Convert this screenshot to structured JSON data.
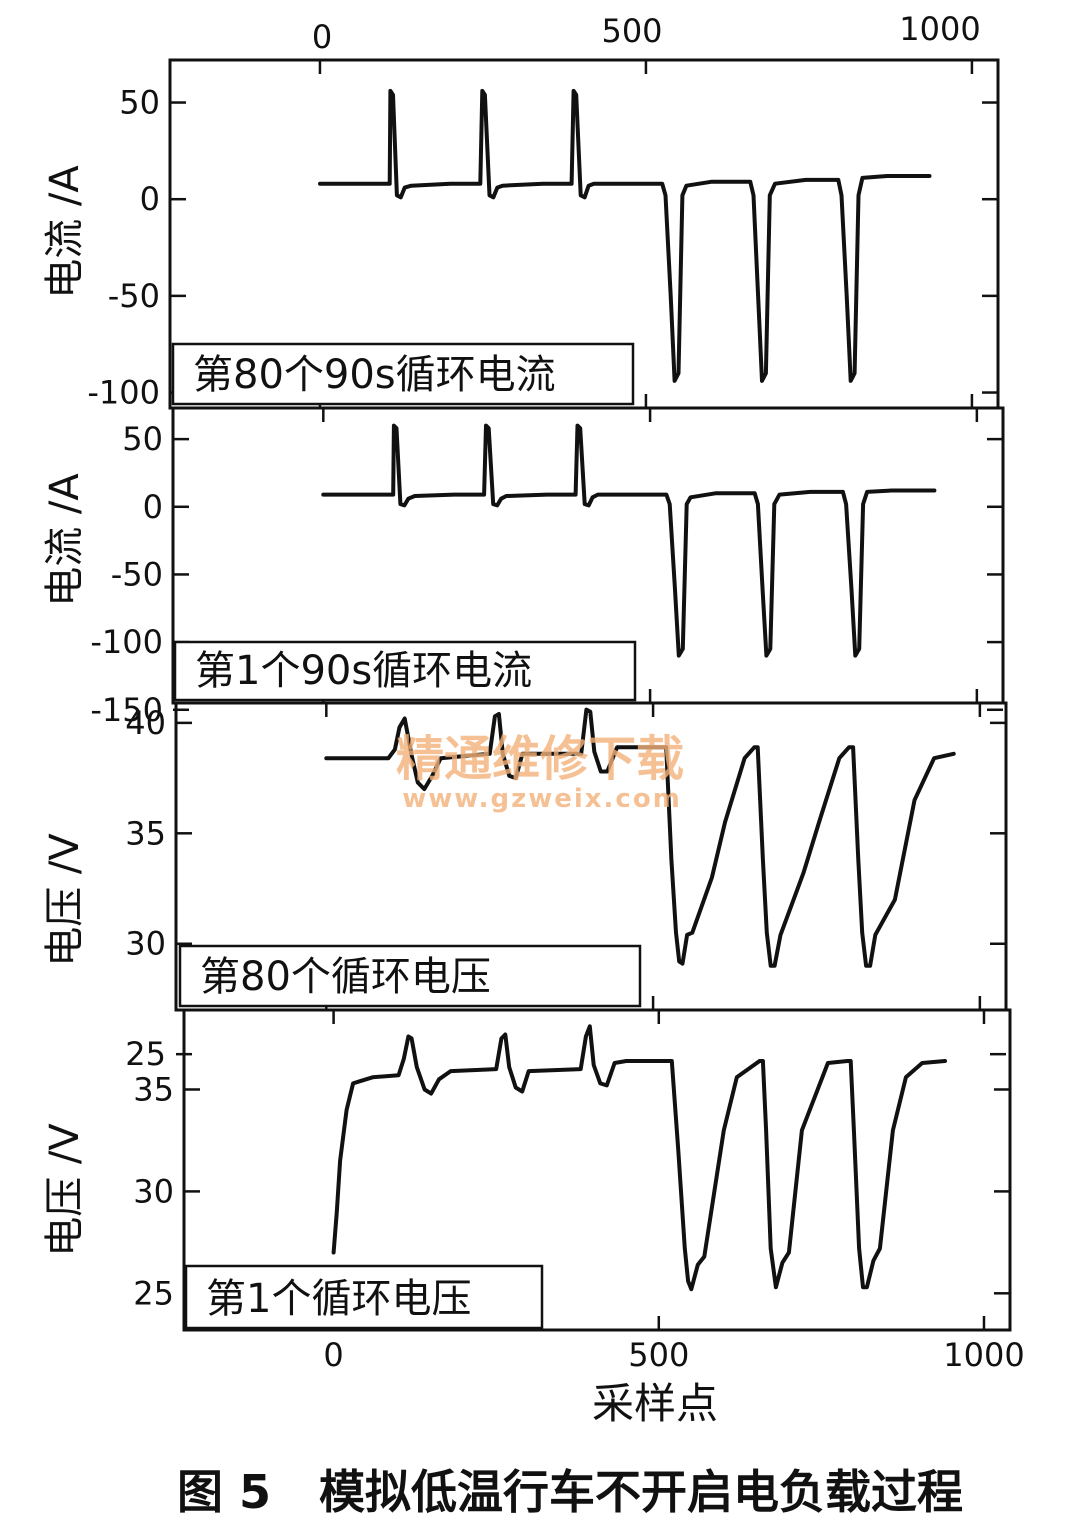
{
  "figure": {
    "caption": "图 5   模拟低温行车不开启电负载过程",
    "top_axis_ticks": [
      "0",
      "500",
      "1000"
    ],
    "xlabel": "采样点",
    "watermark": {
      "line1": "精通维修下载",
      "line2": "www.gzweix.com"
    }
  },
  "chart_data": [
    {
      "type": "line",
      "panel_label": "第80个90s循环电流",
      "ylabel": "电流 /A",
      "xlim": [
        -230,
        1040
      ],
      "ylim": [
        -108,
        72
      ],
      "yticks": [
        50,
        0,
        -50,
        -100
      ],
      "x_ticks": [
        0,
        500,
        1000
      ],
      "series": [
        {
          "x": [
            0,
            107,
            108,
            112,
            118,
            124,
            130,
            140,
            200,
            246,
            249,
            253,
            260,
            266,
            272,
            280,
            342,
            386,
            389,
            393,
            400,
            406,
            412,
            420,
            470,
            525,
            530,
            538,
            544,
            550,
            556,
            562,
            600,
            660,
            665,
            672,
            678,
            684,
            690,
            698,
            745,
            795,
            800,
            808,
            814,
            820,
            826,
            832,
            870,
            935
          ],
          "y": [
            8,
            8,
            56,
            54,
            2,
            1,
            6,
            7,
            8,
            8,
            56,
            54,
            2,
            1,
            6,
            7,
            8,
            8,
            56,
            54,
            2,
            1,
            7,
            8,
            8,
            8,
            2,
            -50,
            -94,
            -90,
            2,
            7,
            9,
            9,
            2,
            -50,
            -94,
            -90,
            2,
            8,
            10,
            10,
            2,
            -50,
            -94,
            -90,
            2,
            11,
            12,
            12
          ]
        }
      ]
    },
    {
      "type": "line",
      "panel_label": "第1个90s循环电流",
      "ylabel": "电流 /A",
      "xlim": [
        -230,
        1040
      ],
      "ylim": [
        -145,
        73
      ],
      "yticks": [
        50,
        0,
        -50,
        -100,
        -150
      ],
      "x_ticks": [
        0,
        500,
        1000
      ],
      "series": [
        {
          "x": [
            0,
            107,
            108,
            112,
            118,
            124,
            130,
            140,
            200,
            246,
            249,
            253,
            260,
            266,
            272,
            280,
            342,
            386,
            389,
            393,
            400,
            406,
            412,
            420,
            470,
            525,
            530,
            538,
            544,
            550,
            556,
            562,
            600,
            660,
            665,
            672,
            678,
            684,
            690,
            698,
            745,
            795,
            800,
            808,
            814,
            820,
            826,
            832,
            870,
            935
          ],
          "y": [
            9,
            9,
            60,
            58,
            2,
            1,
            6,
            8,
            9,
            9,
            60,
            58,
            2,
            1,
            6,
            8,
            9,
            9,
            60,
            58,
            2,
            1,
            7,
            9,
            9,
            9,
            2,
            -60,
            -110,
            -105,
            2,
            7,
            10,
            10,
            2,
            -60,
            -110,
            -105,
            2,
            9,
            11,
            11,
            2,
            -60,
            -110,
            -105,
            2,
            11,
            12,
            12
          ]
        }
      ]
    },
    {
      "type": "line",
      "panel_label": "第80个循环电压",
      "ylabel": "电压 /V",
      "xlim": [
        -230,
        1040
      ],
      "ylim": [
        27,
        40.9
      ],
      "yticks": [
        40,
        35,
        30,
        25
      ],
      "x_ticks": [
        0,
        500,
        1000
      ],
      "series": [
        {
          "x": [
            0,
            95,
            105,
            112,
            120,
            130,
            140,
            150,
            162,
            175,
            250,
            258,
            264,
            270,
            280,
            290,
            300,
            390,
            398,
            404,
            410,
            420,
            430,
            445,
            500,
            520,
            528,
            535,
            540,
            545,
            552,
            560,
            590,
            610,
            640,
            655,
            660,
            668,
            674,
            680,
            686,
            695,
            730,
            755,
            785,
            800,
            806,
            814,
            820,
            826,
            832,
            840,
            870,
            900,
            930,
            960
          ],
          "y": [
            38.4,
            38.4,
            38.8,
            39.8,
            40.2,
            38.6,
            37.3,
            37.0,
            37.6,
            38.4,
            38.6,
            40.3,
            40.4,
            38.6,
            37.6,
            37.5,
            38.6,
            38.6,
            40.6,
            40.5,
            38.7,
            37.8,
            37.8,
            38.9,
            38.9,
            38.9,
            33.8,
            30.5,
            29.2,
            29.1,
            30.4,
            30.5,
            33.0,
            35.5,
            38.4,
            38.9,
            38.9,
            33.8,
            30.5,
            29.0,
            29.0,
            30.4,
            33.2,
            35.6,
            38.4,
            38.9,
            38.9,
            33.8,
            30.5,
            29.0,
            29.0,
            30.4,
            32.0,
            36.5,
            38.4,
            38.6
          ]
        }
      ]
    },
    {
      "type": "line",
      "panel_label": "第1个循环电压",
      "ylabel": "电压 /V",
      "xlim": [
        -230,
        1040
      ],
      "ylim": [
        23.2,
        38.9
      ],
      "yticks": [
        35,
        30,
        25
      ],
      "x_ticks": [
        0,
        500,
        1000
      ],
      "series": [
        {
          "x": [
            0,
            5,
            10,
            20,
            30,
            40,
            60,
            100,
            108,
            115,
            120,
            128,
            140,
            150,
            162,
            180,
            250,
            258,
            264,
            270,
            280,
            290,
            300,
            380,
            388,
            394,
            400,
            410,
            420,
            432,
            450,
            500,
            520,
            530,
            540,
            545,
            550,
            560,
            570,
            600,
            620,
            655,
            660,
            665,
            672,
            680,
            690,
            700,
            720,
            760,
            790,
            795,
            800,
            808,
            814,
            820,
            830,
            840,
            860,
            880,
            905,
            940
          ],
          "y": [
            27.0,
            29.0,
            31.5,
            34.0,
            35.3,
            35.4,
            35.6,
            35.7,
            36.5,
            37.6,
            37.5,
            36.1,
            35.0,
            34.8,
            35.5,
            35.9,
            36.0,
            37.5,
            37.7,
            36.1,
            35.1,
            34.9,
            35.9,
            36.0,
            37.6,
            38.1,
            36.2,
            35.3,
            35.2,
            36.3,
            36.4,
            36.4,
            36.4,
            32.0,
            27.2,
            25.6,
            25.2,
            26.4,
            26.8,
            33.0,
            35.6,
            36.4,
            36.4,
            33.0,
            27.2,
            25.3,
            26.5,
            27.0,
            33.0,
            36.3,
            36.4,
            36.4,
            33.0,
            27.2,
            25.3,
            25.3,
            26.6,
            27.2,
            33.0,
            35.6,
            36.3,
            36.4
          ]
        }
      ]
    }
  ]
}
